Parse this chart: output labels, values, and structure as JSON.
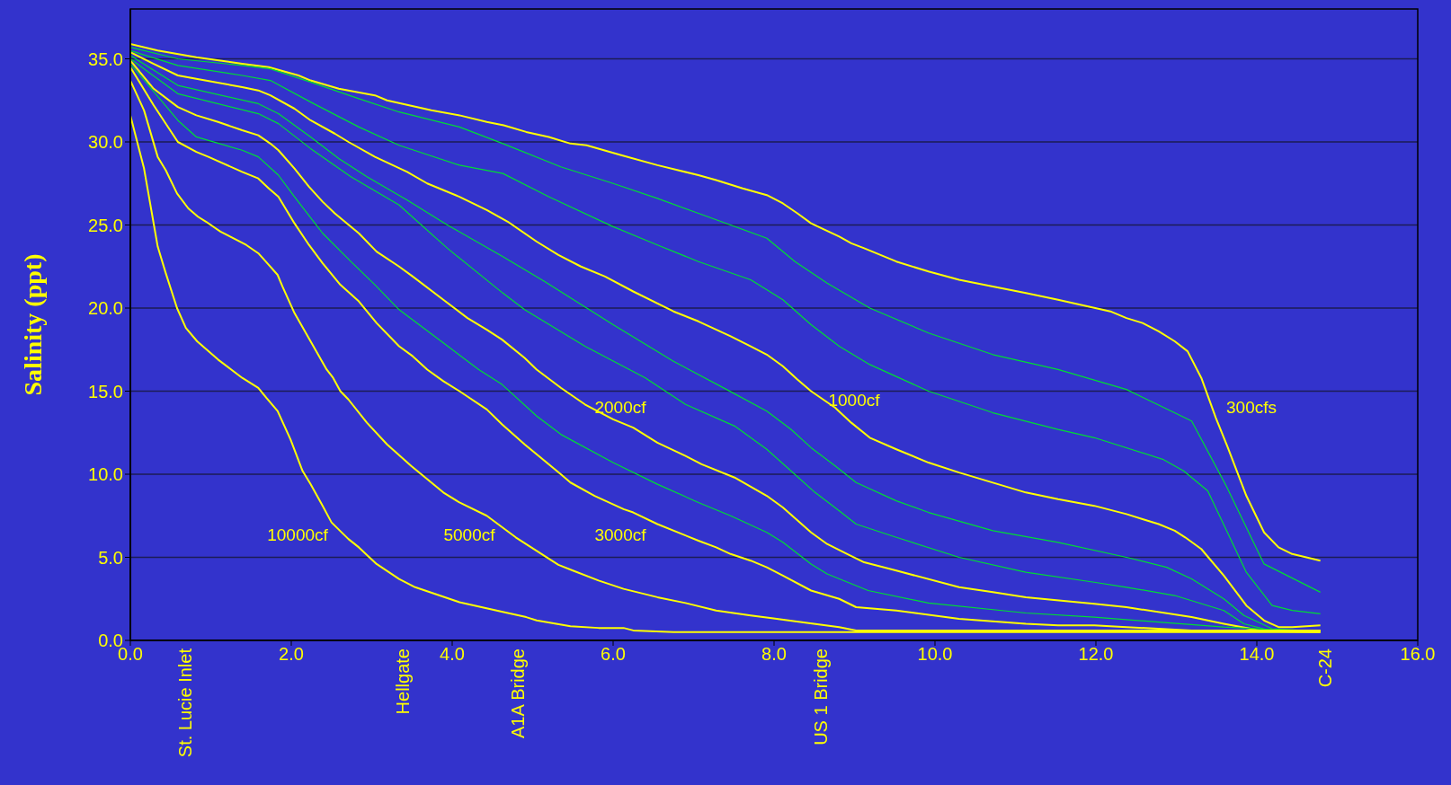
{
  "chart_data": {
    "type": "line",
    "ylabel": "Salinity (ppt)",
    "grid": "y",
    "xlim": [
      0,
      16
    ],
    "xticks": [
      {
        "value": 0,
        "label": "0.0"
      },
      {
        "value": 2,
        "label": "2.0"
      },
      {
        "value": 4,
        "label": "4.0"
      },
      {
        "value": 6,
        "label": "6.0"
      },
      {
        "value": 8,
        "label": "8.0"
      },
      {
        "value": 10,
        "label": "10.0"
      },
      {
        "value": 12,
        "label": "12.0"
      },
      {
        "value": 14,
        "label": "14.0"
      },
      {
        "value": 16,
        "label": "16.0"
      }
    ],
    "ylim": [
      0,
      38
    ],
    "yticks": [
      {
        "value": 0,
        "label": "0.0"
      },
      {
        "value": 5,
        "label": "5.0"
      },
      {
        "value": 10,
        "label": "10.0"
      },
      {
        "value": 15,
        "label": "15.0"
      },
      {
        "value": 20,
        "label": "20.0"
      },
      {
        "value": 25,
        "label": "25.0"
      },
      {
        "value": 30,
        "label": "30.0"
      },
      {
        "value": 35,
        "label": "35.0"
      }
    ],
    "annotations": [
      "St. Lucie Inlet",
      "Hellgate",
      "A1A Bridge",
      "US 1 Bridge",
      "C-24"
    ],
    "series": [
      {
        "type": "line",
        "name": "300cfs",
        "color": "#ffff00",
        "x": [
          0,
          0.34,
          0.82,
          1.39,
          1.72,
          2.09,
          2.24,
          2.59,
          3.04,
          3.19,
          3.74,
          4.09,
          4.43,
          4.64,
          4.92,
          5.2,
          5.47,
          5.67,
          6.1,
          6.55,
          7.06,
          7.28,
          7.61,
          7.91,
          8.11,
          8.29,
          8.46,
          8.81,
          8.96,
          9.12,
          9.52,
          9.92,
          10.3,
          10.72,
          11.13,
          11.53,
          12.18,
          12.38,
          12.58,
          12.78,
          12.98,
          13.14,
          13.31,
          13.49,
          13.64,
          13.87,
          14.09,
          14.27,
          14.44,
          14.79
        ],
        "values": [
          35.9,
          35.5,
          35.1,
          34.7,
          34.5,
          34.0,
          33.7,
          33.2,
          32.8,
          32.5,
          31.9,
          31.6,
          31.2,
          31.0,
          30.6,
          30.3,
          29.9,
          29.8,
          29.2,
          28.6,
          28.0,
          27.7,
          27.2,
          26.8,
          26.3,
          25.7,
          25.1,
          24.3,
          23.9,
          23.6,
          22.8,
          22.2,
          21.7,
          21.3,
          20.9,
          20.5,
          19.8,
          19.4,
          19.1,
          18.6,
          18.0,
          17.4,
          15.8,
          13.4,
          11.6,
          8.7,
          6.5,
          5.6,
          5.2,
          4.8
        ]
      },
      {
        "type": "line",
        "color": "#00dd33",
        "x": [
          0,
          0.59,
          1.39,
          1.74,
          2.24,
          2.84,
          3.34,
          4.09,
          4.63,
          5.35,
          6.0,
          6.55,
          7.06,
          7.46,
          7.91,
          8.26,
          8.66,
          9.19,
          9.92,
          10.72,
          11.53,
          12.38,
          13.19,
          13.62,
          14.09,
          14.79
        ],
        "values": [
          35.7,
          35.0,
          34.6,
          34.4,
          33.6,
          32.6,
          31.8,
          30.9,
          29.9,
          28.5,
          27.5,
          26.6,
          25.7,
          25.0,
          24.2,
          22.8,
          21.5,
          20.0,
          18.5,
          17.2,
          16.3,
          15.1,
          13.2,
          9.3,
          4.6,
          2.9
        ]
      },
      {
        "type": "line",
        "color": "#00dd33",
        "x": [
          0,
          0.59,
          1.39,
          1.74,
          2.24,
          2.84,
          3.34,
          4.09,
          4.63,
          5.2,
          6.0,
          6.55,
          7.06,
          7.71,
          8.11,
          8.46,
          8.81,
          9.19,
          9.92,
          10.72,
          11.53,
          11.98,
          12.83,
          13.09,
          13.39,
          13.87,
          14.19,
          14.44,
          14.79
        ],
        "values": [
          35.5,
          34.6,
          34.0,
          33.7,
          32.4,
          30.9,
          29.8,
          28.6,
          28.1,
          26.7,
          24.9,
          23.8,
          22.8,
          21.7,
          20.5,
          19.0,
          17.7,
          16.6,
          15.0,
          13.7,
          12.7,
          12.2,
          10.9,
          10.2,
          9.0,
          4.1,
          2.1,
          1.8,
          1.6
        ]
      },
      {
        "type": "line",
        "name": "1000cf",
        "color": "#ffff00",
        "x": [
          0,
          0.29,
          0.59,
          0.82,
          1.39,
          1.59,
          1.74,
          2.04,
          2.24,
          2.54,
          2.71,
          3.04,
          3.44,
          3.69,
          4.09,
          4.43,
          4.69,
          5.05,
          5.32,
          5.6,
          5.9,
          6.25,
          6.75,
          7.06,
          7.46,
          7.71,
          7.91,
          8.11,
          8.29,
          8.46,
          8.76,
          8.96,
          9.19,
          9.52,
          9.92,
          10.3,
          11.13,
          11.53,
          11.98,
          12.38,
          12.58,
          12.78,
          12.98,
          13.11,
          13.31,
          13.59,
          13.87,
          14.09,
          14.27,
          14.44,
          14.79
        ],
        "values": [
          35.4,
          34.7,
          34.0,
          33.8,
          33.3,
          33.1,
          32.8,
          32.0,
          31.3,
          30.5,
          30.0,
          29.1,
          28.2,
          27.5,
          26.7,
          25.9,
          25.2,
          24.0,
          23.2,
          22.5,
          21.9,
          21.0,
          19.8,
          19.2,
          18.3,
          17.7,
          17.2,
          16.5,
          15.7,
          15.0,
          14.0,
          13.1,
          12.2,
          11.5,
          10.7,
          10.1,
          8.9,
          8.5,
          8.1,
          7.6,
          7.3,
          7.0,
          6.6,
          6.2,
          5.5,
          3.9,
          2.1,
          1.2,
          0.8,
          0.8,
          0.9
        ]
      },
      {
        "type": "line",
        "color": "#00dd33",
        "x": [
          0,
          0.59,
          1.59,
          1.84,
          2.24,
          2.59,
          2.94,
          3.44,
          3.94,
          4.63,
          5.15,
          6.0,
          6.75,
          7.41,
          7.91,
          8.21,
          8.46,
          8.76,
          9.02,
          9.52,
          9.92,
          10.72,
          11.53,
          12.38,
          12.88,
          13.19,
          13.59,
          13.84,
          14.19,
          14.79
        ],
        "values": [
          35.2,
          33.4,
          32.3,
          31.7,
          30.3,
          29.0,
          27.9,
          26.5,
          25.0,
          23.1,
          21.6,
          19.0,
          16.8,
          15.1,
          13.8,
          12.7,
          11.6,
          10.5,
          9.5,
          8.4,
          7.7,
          6.6,
          5.9,
          5.0,
          4.4,
          3.7,
          2.5,
          1.5,
          0.7,
          0.55
        ]
      },
      {
        "type": "line",
        "color": "#00dd33",
        "x": [
          0,
          0.59,
          1.59,
          1.84,
          2.24,
          2.74,
          3.34,
          3.94,
          4.63,
          4.9,
          5.65,
          6.4,
          6.9,
          7.51,
          7.91,
          8.21,
          8.51,
          8.81,
          9.02,
          9.52,
          10.3,
          11.13,
          11.98,
          12.38,
          12.98,
          13.59,
          13.84,
          14.19,
          14.79
        ],
        "values": [
          35.0,
          32.9,
          31.7,
          31.1,
          29.6,
          27.9,
          26.2,
          23.6,
          20.9,
          19.9,
          17.7,
          15.8,
          14.2,
          12.9,
          11.5,
          10.2,
          8.9,
          7.8,
          7.0,
          6.2,
          5.0,
          4.1,
          3.5,
          3.2,
          2.7,
          1.8,
          1.0,
          0.56,
          0.5
        ]
      },
      {
        "type": "line",
        "name": "2000cf",
        "color": "#ffff00",
        "x": [
          0,
          0.29,
          0.59,
          0.82,
          1.09,
          1.39,
          1.59,
          1.74,
          1.84,
          2.04,
          2.22,
          2.39,
          2.54,
          2.84,
          3.06,
          3.34,
          3.51,
          3.89,
          4.19,
          4.43,
          4.62,
          4.9,
          5.05,
          5.35,
          5.65,
          6.0,
          6.25,
          6.55,
          6.9,
          7.1,
          7.51,
          7.91,
          8.11,
          8.46,
          8.66,
          8.91,
          9.12,
          9.52,
          10.3,
          10.72,
          11.13,
          11.98,
          12.38,
          13.19,
          13.59,
          14.09,
          14.79
        ],
        "values": [
          34.9,
          33.2,
          32.1,
          31.6,
          31.2,
          30.7,
          30.4,
          29.9,
          29.5,
          28.4,
          27.3,
          26.4,
          25.7,
          24.5,
          23.4,
          22.5,
          21.9,
          20.5,
          19.4,
          18.7,
          18.1,
          17.0,
          16.3,
          15.2,
          14.2,
          13.3,
          12.8,
          11.9,
          11.1,
          10.6,
          9.8,
          8.7,
          8.0,
          6.5,
          5.8,
          5.2,
          4.7,
          4.2,
          3.2,
          2.9,
          2.6,
          2.2,
          2.0,
          1.4,
          1.0,
          0.55,
          0.6
        ]
      },
      {
        "type": "line",
        "color": "#00dd33",
        "x": [
          0,
          0.59,
          0.82,
          1.39,
          1.59,
          1.84,
          2.04,
          2.39,
          2.74,
          3.04,
          3.34,
          3.89,
          4.33,
          4.62,
          5.05,
          5.35,
          6.0,
          6.55,
          7.06,
          7.46,
          7.91,
          8.11,
          8.46,
          8.66,
          9.17,
          9.92,
          11.13,
          11.98,
          12.78,
          13.59,
          14.79
        ],
        "values": [
          34.7,
          31.3,
          30.3,
          29.5,
          29.1,
          28.0,
          26.7,
          24.5,
          22.8,
          21.4,
          19.9,
          17.9,
          16.3,
          15.4,
          13.5,
          12.4,
          10.7,
          9.4,
          8.3,
          7.5,
          6.5,
          5.9,
          4.6,
          4.0,
          3.0,
          2.25,
          1.65,
          1.4,
          1.1,
          0.8,
          0.5
        ]
      },
      {
        "type": "line",
        "name": "3000cf",
        "color": "#ffff00",
        "x": [
          0,
          0.29,
          0.59,
          0.82,
          0.97,
          1.39,
          1.59,
          1.72,
          1.84,
          2.04,
          2.22,
          2.39,
          2.61,
          2.84,
          3.06,
          3.34,
          3.51,
          3.69,
          3.89,
          4.09,
          4.43,
          4.62,
          4.9,
          5.35,
          5.47,
          5.77,
          6.13,
          6.25,
          6.55,
          7.06,
          7.28,
          7.46,
          7.71,
          7.91,
          8.11,
          8.46,
          8.81,
          9.02,
          9.52,
          10.3,
          11.13,
          11.53,
          11.98,
          12.38,
          13.19,
          13.59,
          14.79
        ],
        "values": [
          34.5,
          32.2,
          30.0,
          29.4,
          29.1,
          28.2,
          27.8,
          27.2,
          26.7,
          25.1,
          23.8,
          22.7,
          21.4,
          20.4,
          19.1,
          17.7,
          17.1,
          16.3,
          15.6,
          15.0,
          13.9,
          13.0,
          11.8,
          10.0,
          9.5,
          8.7,
          7.9,
          7.7,
          7.0,
          6.0,
          5.6,
          5.2,
          4.8,
          4.4,
          3.9,
          3.0,
          2.5,
          2.0,
          1.8,
          1.3,
          1.0,
          0.9,
          0.9,
          0.8,
          0.6,
          0.6,
          0.5
        ]
      },
      {
        "type": "line",
        "name": "5000cf",
        "color": "#ffff00",
        "x": [
          0,
          0.17,
          0.34,
          0.44,
          0.58,
          0.72,
          0.84,
          0.94,
          1.12,
          1.44,
          1.59,
          1.72,
          1.83,
          1.89,
          2.04,
          2.24,
          2.44,
          2.52,
          2.61,
          2.71,
          2.94,
          3.19,
          3.49,
          3.89,
          4.09,
          4.43,
          4.79,
          5.32,
          5.5,
          5.82,
          6.13,
          6.55,
          6.9,
          7.28,
          7.71,
          7.95,
          8.41,
          8.81,
          9.02,
          14.79
        ],
        "values": [
          33.7,
          31.9,
          29.1,
          28.3,
          26.9,
          26.0,
          25.5,
          25.2,
          24.6,
          23.8,
          23.3,
          22.6,
          22.0,
          21.3,
          19.7,
          18.0,
          16.3,
          15.8,
          15.0,
          14.5,
          13.1,
          11.8,
          10.5,
          8.9,
          8.3,
          7.5,
          6.2,
          4.55,
          4.2,
          3.6,
          3.1,
          2.6,
          2.25,
          1.8,
          1.5,
          1.35,
          1.05,
          0.8,
          0.6,
          0.6
        ]
      },
      {
        "type": "line",
        "name": "10000cf",
        "color": "#ffff00",
        "x": [
          0,
          0.17,
          0.34,
          0.44,
          0.58,
          0.69,
          0.83,
          1.09,
          1.39,
          1.59,
          1.69,
          1.83,
          1.99,
          2.14,
          2.24,
          2.39,
          2.5,
          2.71,
          2.84,
          3.06,
          3.34,
          3.54,
          4.09,
          4.64,
          4.92,
          5.05,
          5.47,
          5.82,
          6.13,
          6.25,
          6.75,
          14.79
        ],
        "values": [
          31.6,
          28.4,
          23.7,
          22.1,
          20.0,
          18.8,
          18.0,
          16.9,
          15.8,
          15.2,
          14.6,
          13.8,
          12.1,
          10.2,
          9.4,
          8.1,
          7.1,
          6.1,
          5.6,
          4.6,
          3.7,
          3.2,
          2.3,
          1.7,
          1.4,
          1.2,
          0.85,
          0.75,
          0.75,
          0.6,
          0.5,
          0.5
        ]
      }
    ]
  }
}
